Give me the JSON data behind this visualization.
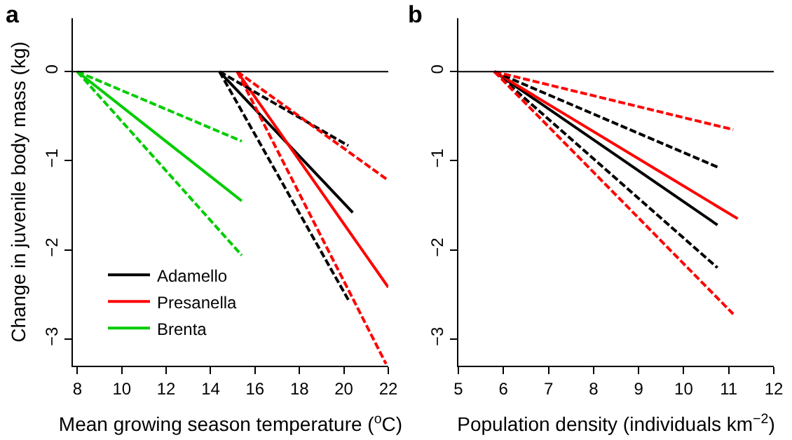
{
  "chart_data": [
    {
      "type": "line",
      "title": "a",
      "xlabel": "Mean growing season temperature ($^{o}$C)",
      "ylabel": "Change in juvenile body mass (kg)",
      "xlim": [
        7.8,
        22
      ],
      "xticks": [
        8,
        10,
        12,
        14,
        16,
        18,
        20,
        22
      ],
      "ylim": [
        -3.3,
        0.6
      ],
      "yticks": [
        0,
        -1,
        -2,
        -3
      ],
      "legend": "bottom left",
      "ref_lines": [
        {
          "axis": "y",
          "value": 0,
          "color": "#000000"
        }
      ],
      "series": [
        {
          "name": "Adamello",
          "color": "#000000",
          "x": [
            14.4,
            20.4
          ],
          "values": [
            0,
            -1.58
          ],
          "line_style": "solid"
        },
        {
          "name": "Presanella",
          "color": "#ff0000",
          "x": [
            15.2,
            22
          ],
          "values": [
            0,
            -2.42
          ],
          "line_style": "solid"
        },
        {
          "name": "Brenta",
          "color": "#00cc00",
          "x": [
            8,
            15.4
          ],
          "values": [
            0,
            -1.45
          ],
          "line_style": "solid"
        },
        {
          "color": "#000000",
          "x": [
            14.4,
            20.2
          ],
          "values": [
            0,
            -0.83
          ],
          "line_style": "dashed"
        },
        {
          "color": "#000000",
          "x": [
            14.4,
            20.2
          ],
          "values": [
            0,
            -2.56
          ],
          "line_style": "dashed"
        },
        {
          "color": "#ff0000",
          "x": [
            15.2,
            22
          ],
          "values": [
            0,
            -1.22
          ],
          "line_style": "dashed"
        },
        {
          "color": "#ff0000",
          "x": [
            15.2,
            21.9
          ],
          "values": [
            0,
            -3.28
          ],
          "line_style": "dashed"
        },
        {
          "color": "#00cc00",
          "x": [
            8,
            15.4
          ],
          "values": [
            0,
            -0.78
          ],
          "line_style": "dashed"
        },
        {
          "color": "#00cc00",
          "x": [
            8,
            15.4
          ],
          "values": [
            0,
            -2.06
          ],
          "line_style": "dashed"
        }
      ]
    },
    {
      "type": "line",
      "title": "b",
      "xlabel": "Population density (individuals km$^{−2}$)",
      "xlim": [
        5,
        12
      ],
      "xticks": [
        5,
        6,
        7,
        8,
        9,
        10,
        11,
        12
      ],
      "ylim": [
        -3.3,
        0.6
      ],
      "yticks": [
        0,
        -1,
        -2,
        -3
      ],
      "legend": false,
      "ref_lines": [
        {
          "axis": "y",
          "value": 0,
          "color": "#000000"
        }
      ],
      "series": [
        {
          "color": "#000000",
          "x": [
            5.8,
            10.75
          ],
          "values": [
            0,
            -1.72
          ],
          "line_style": "solid"
        },
        {
          "color": "#ff0000",
          "x": [
            5.8,
            11.2
          ],
          "values": [
            0,
            -1.65
          ],
          "line_style": "solid"
        },
        {
          "color": "#000000",
          "x": [
            5.8,
            10.75
          ],
          "values": [
            0,
            -1.07
          ],
          "line_style": "dashed"
        },
        {
          "color": "#000000",
          "x": [
            5.8,
            10.75
          ],
          "values": [
            0,
            -2.2
          ],
          "line_style": "dashed"
        },
        {
          "color": "#ff0000",
          "x": [
            5.8,
            11.1
          ],
          "values": [
            0,
            -0.65
          ],
          "line_style": "dashed"
        },
        {
          "color": "#ff0000",
          "x": [
            5.8,
            11.1
          ],
          "values": [
            0,
            -2.72
          ],
          "line_style": "dashed"
        }
      ]
    }
  ]
}
